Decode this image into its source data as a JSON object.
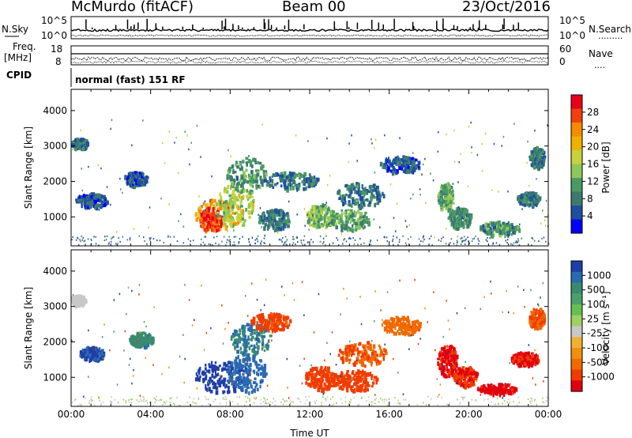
{
  "header": {
    "station": "McMurdo (fitACF)",
    "beam": "Beam 00",
    "date": "23/Oct/2016"
  },
  "housekeeping": {
    "nsky_label": "N.Sky",
    "nsearch_label": "N.Search",
    "nsky_ticks": [
      "10^5",
      "10^0"
    ],
    "nsearch_ticks": [
      "10^5",
      "10^0"
    ],
    "freq_label_1": "Freq.",
    "freq_label_2": "[MHz]",
    "freq_ticks": [
      "18",
      "8"
    ],
    "nave_label": "Nave",
    "nave_ticks": [
      "60",
      "0"
    ],
    "cpid_label": "CPID",
    "cpid_text": "normal (fast) 151 RF"
  },
  "chart_data": [
    {
      "type": "heatmap",
      "name": "power",
      "ylabel": "Slant Range [km]",
      "xlabel": "",
      "yticks": [
        1000,
        2000,
        3000,
        4000
      ],
      "ylim": [
        180,
        4600
      ],
      "xlim": [
        0,
        24
      ],
      "colorbar": {
        "label": "Power [dB]",
        "ticks": [
          "28",
          "24",
          "20",
          "16",
          "12",
          "8",
          "4"
        ],
        "colors": [
          "#e8001a",
          "#f04010",
          "#f68a00",
          "#f0b000",
          "#c8d23c",
          "#8ec85a",
          "#4a9a64",
          "#3c7a70",
          "#1e4ea0",
          "#0000ff"
        ]
      },
      "blobs": [
        {
          "t": 7.4,
          "r": 1100,
          "dt": 1.2,
          "dr": 450,
          "v": 22
        },
        {
          "t": 7.0,
          "r": 950,
          "dt": 0.6,
          "dr": 350,
          "v": 27
        },
        {
          "t": 8.2,
          "r": 1350,
          "dt": 1.0,
          "dr": 600,
          "v": 16
        },
        {
          "t": 8.8,
          "r": 2200,
          "dt": 1.0,
          "dr": 500,
          "v": 10
        },
        {
          "t": 10.2,
          "r": 950,
          "dt": 0.8,
          "dr": 300,
          "v": 8
        },
        {
          "t": 12.5,
          "r": 1050,
          "dt": 0.7,
          "dr": 350,
          "v": 13
        },
        {
          "t": 14.0,
          "r": 950,
          "dt": 1.0,
          "dr": 300,
          "v": 12
        },
        {
          "t": 14.5,
          "r": 1650,
          "dt": 1.2,
          "dr": 350,
          "v": 8
        },
        {
          "t": 11.0,
          "r": 2050,
          "dt": 1.4,
          "dr": 250,
          "v": 8
        },
        {
          "t": 18.8,
          "r": 1600,
          "dt": 0.4,
          "dr": 400,
          "v": 12
        },
        {
          "t": 19.5,
          "r": 1000,
          "dt": 0.6,
          "dr": 300,
          "v": 10
        },
        {
          "t": 21.5,
          "r": 700,
          "dt": 1.0,
          "dr": 200,
          "v": 10
        },
        {
          "t": 23.0,
          "r": 1550,
          "dt": 0.6,
          "dr": 200,
          "v": 8
        },
        {
          "t": 23.4,
          "r": 2700,
          "dt": 0.4,
          "dr": 300,
          "v": 8
        },
        {
          "t": 0.4,
          "r": 3100,
          "dt": 0.4,
          "dr": 150,
          "v": 8
        },
        {
          "t": 3.2,
          "r": 2100,
          "dt": 0.6,
          "dr": 200,
          "v": 6
        },
        {
          "t": 1.0,
          "r": 1500,
          "dt": 0.8,
          "dr": 200,
          "v": 6
        },
        {
          "t": 16.5,
          "r": 2500,
          "dt": 1.0,
          "dr": 250,
          "v": 6
        }
      ]
    },
    {
      "type": "heatmap",
      "name": "velocity",
      "ylabel": "Slant Range [km]",
      "xlabel": "Time UT",
      "yticks": [
        1000,
        2000,
        3000,
        4000
      ],
      "ylim": [
        180,
        4600
      ],
      "xlim": [
        0,
        24
      ],
      "xticks": [
        "00:00",
        "04:00",
        "08:00",
        "12:00",
        "16:00",
        "20:00",
        "00:00"
      ],
      "colorbar": {
        "label": "Velocity [m s⁻¹]",
        "ticks": [
          "1000",
          "500",
          "100",
          "25",
          "-25",
          "-100",
          "-500",
          "-1000"
        ],
        "colors": [
          "#1e3ea8",
          "#2a6ab0",
          "#3a8a70",
          "#4aa06a",
          "#64c050",
          "#a0d060",
          "#c8c8c8",
          "#f0b030",
          "#f09010",
          "#f06a00",
          "#f03c00",
          "#e00010"
        ]
      },
      "blobs": [
        {
          "t": 7.6,
          "r": 1050,
          "dt": 1.4,
          "dr": 450,
          "v": 900
        },
        {
          "t": 8.8,
          "r": 1150,
          "dt": 1.0,
          "dr": 550,
          "v": 350
        },
        {
          "t": 9.0,
          "r": 2100,
          "dt": 1.0,
          "dr": 450,
          "v": 150
        },
        {
          "t": 10.0,
          "r": 2600,
          "dt": 1.0,
          "dr": 250,
          "v": -200
        },
        {
          "t": 12.5,
          "r": 1000,
          "dt": 0.8,
          "dr": 350,
          "v": -300
        },
        {
          "t": 14.2,
          "r": 950,
          "dt": 1.2,
          "dr": 300,
          "v": -250
        },
        {
          "t": 14.6,
          "r": 1700,
          "dt": 1.2,
          "dr": 350,
          "v": -150
        },
        {
          "t": 18.9,
          "r": 1500,
          "dt": 0.5,
          "dr": 450,
          "v": -600
        },
        {
          "t": 19.8,
          "r": 1050,
          "dt": 0.6,
          "dr": 300,
          "v": -500
        },
        {
          "t": 21.4,
          "r": 700,
          "dt": 1.0,
          "dr": 150,
          "v": -700
        },
        {
          "t": 22.8,
          "r": 1550,
          "dt": 0.7,
          "dr": 200,
          "v": -600
        },
        {
          "t": 23.4,
          "r": 2700,
          "dt": 0.4,
          "dr": 300,
          "v": -150
        },
        {
          "t": 0.3,
          "r": 3200,
          "dt": 0.4,
          "dr": 150,
          "v": 0
        },
        {
          "t": 3.5,
          "r": 2100,
          "dt": 0.6,
          "dr": 200,
          "v": 120
        },
        {
          "t": 1.0,
          "r": 1700,
          "dt": 0.6,
          "dr": 200,
          "v": 600
        },
        {
          "t": 16.6,
          "r": 2500,
          "dt": 1.0,
          "dr": 250,
          "v": -120
        }
      ]
    }
  ]
}
